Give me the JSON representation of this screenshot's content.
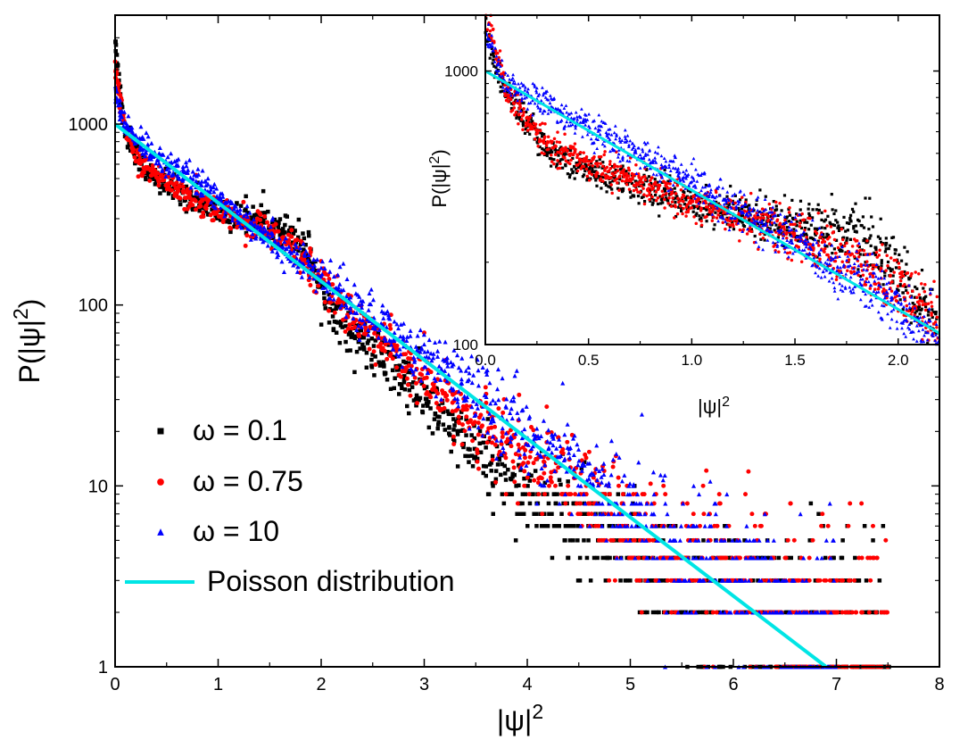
{
  "chart_data": [
    {
      "id": "main",
      "type": "scatter",
      "title": "",
      "xlabel": "|ψ|",
      "xlabel_sup": "2",
      "ylabel": "P(|ψ|",
      "ylabel_sup": "2",
      "ylabel_close": ")",
      "xlim": [
        0,
        8
      ],
      "ylim": [
        1,
        4000
      ],
      "yscale": "log",
      "xticks": [
        0,
        1,
        2,
        3,
        4,
        5,
        6,
        7,
        8
      ],
      "yticks": [
        1,
        10,
        100,
        1000
      ],
      "legend_position": "lower-left",
      "series": [
        {
          "name": "ω = 0.1",
          "marker": "square",
          "color": "#000000",
          "x": [
            0.0,
            0.05,
            0.1,
            0.2,
            0.3,
            0.5,
            0.8,
            1.0,
            1.2,
            1.4,
            1.6,
            1.8,
            1.9,
            2.0,
            2.2,
            2.5,
            3.0,
            3.5,
            4.0,
            4.5,
            5.0,
            5.5,
            6.0,
            6.5,
            7.0,
            7.5
          ],
          "values": [
            3000,
            1500,
            900,
            700,
            550,
            450,
            380,
            330,
            300,
            290,
            270,
            230,
            190,
            120,
            80,
            55,
            30,
            15,
            9,
            6,
            4,
            3,
            2.5,
            2,
            1.8,
            1.5
          ]
        },
        {
          "name": "ω = 0.75",
          "marker": "circle",
          "color": "#ff0000",
          "x": [
            0.0,
            0.05,
            0.1,
            0.2,
            0.3,
            0.5,
            0.8,
            1.0,
            1.2,
            1.4,
            1.6,
            1.8,
            2.0,
            2.2,
            2.5,
            3.0,
            3.5,
            4.0,
            4.5,
            5.0,
            5.5,
            6.0,
            6.5,
            7.0,
            7.5
          ],
          "values": [
            2000,
            1400,
            900,
            700,
            580,
            480,
            380,
            330,
            300,
            270,
            230,
            190,
            140,
            100,
            70,
            38,
            22,
            14,
            9,
            6,
            4,
            3,
            2.5,
            2,
            1.5
          ]
        },
        {
          "name": "ω = 10",
          "marker": "triangle",
          "color": "#0000ff",
          "x": [
            0.0,
            0.1,
            0.2,
            0.5,
            1.0,
            1.5,
            2.0,
            2.5,
            3.0,
            3.5,
            4.0,
            4.5,
            5.0,
            5.5,
            6.0,
            6.5,
            7.0
          ],
          "values": [
            1500,
            950,
            830,
            620,
            390,
            240,
            140,
            85,
            50,
            32,
            19,
            12,
            7,
            4.5,
            2.8,
            2,
            1.5
          ]
        },
        {
          "name": "Poisson distribution",
          "marker": "line",
          "color": "#00e5e5",
          "x": [
            0,
            6.9
          ],
          "values": [
            1000,
            1
          ]
        }
      ]
    },
    {
      "id": "inset",
      "type": "scatter",
      "title": "",
      "xlabel": "|ψ|",
      "xlabel_sup": "2",
      "ylabel": "P(|ψ|",
      "ylabel_sup": "2",
      "ylabel_close": ")",
      "xlim": [
        0,
        2.2
      ],
      "ylim": [
        100,
        1600
      ],
      "yscale": "log",
      "xticks": [
        0.0,
        0.5,
        1.0,
        1.5,
        2.0
      ],
      "xtick_labels": [
        "0.0",
        "0.5",
        "1.0",
        "1.5",
        "2.0"
      ],
      "yticks": [
        100,
        1000
      ],
      "series": [
        {
          "name": "ω = 0.1",
          "marker": "square",
          "color": "#000000",
          "x": [
            0.0,
            0.05,
            0.1,
            0.2,
            0.3,
            0.5,
            0.8,
            1.0,
            1.2,
            1.4,
            1.6,
            1.8,
            1.9,
            2.0,
            2.1,
            2.2
          ],
          "values": [
            1500,
            1000,
            850,
            650,
            520,
            430,
            370,
            330,
            300,
            285,
            270,
            250,
            220,
            180,
            140,
            115
          ]
        },
        {
          "name": "ω = 0.75",
          "marker": "circle",
          "color": "#ff0000",
          "x": [
            0.0,
            0.05,
            0.1,
            0.2,
            0.3,
            0.5,
            0.8,
            1.0,
            1.2,
            1.4,
            1.6,
            1.8,
            2.0,
            2.2
          ],
          "values": [
            1600,
            1200,
            850,
            650,
            540,
            460,
            380,
            330,
            300,
            270,
            235,
            200,
            160,
            120
          ]
        },
        {
          "name": "ω = 10",
          "marker": "triangle",
          "color": "#0000ff",
          "x": [
            0.0,
            0.1,
            0.2,
            0.5,
            1.0,
            1.5,
            2.0,
            2.2
          ],
          "values": [
            1400,
            900,
            830,
            620,
            390,
            240,
            140,
            105
          ]
        },
        {
          "name": "Poisson distribution",
          "marker": "line",
          "color": "#00e5e5",
          "x": [
            0,
            2.2
          ],
          "values": [
            1000,
            110
          ]
        }
      ]
    }
  ]
}
